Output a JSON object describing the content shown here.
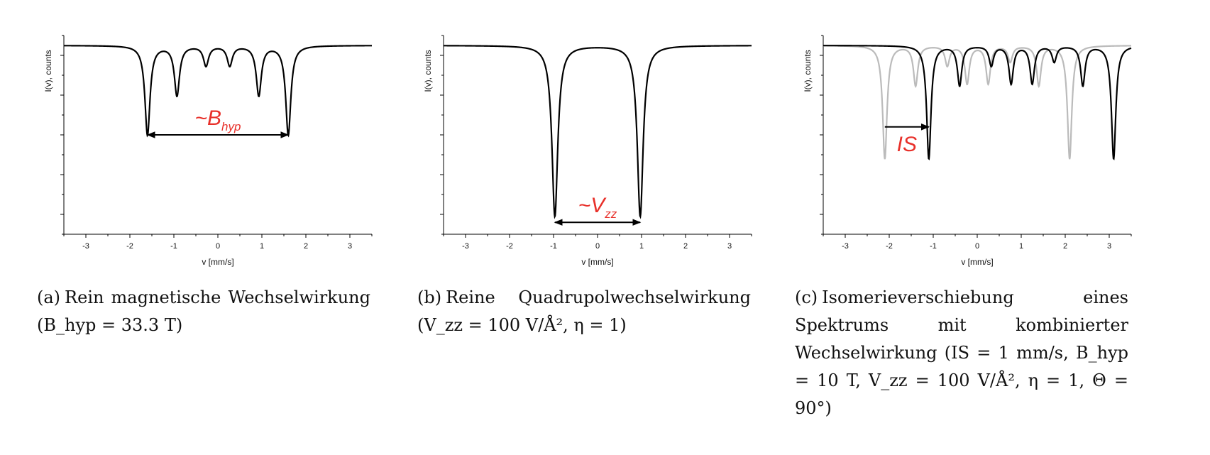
{
  "chart_data": [
    {
      "type": "line",
      "panel": "a",
      "xlabel": "v [mm/s]",
      "ylabel": "I(v), counts",
      "xlim": [
        -3.5,
        3.5
      ],
      "ylim": [
        0,
        1
      ],
      "x_ticks": [
        -3,
        -2,
        -1,
        0,
        1,
        2,
        3
      ],
      "grid": false,
      "series": [
        {
          "color": "#000000",
          "baseline": 0.95,
          "lines": [
            {
              "position": -1.6,
              "depth": 0.45,
              "width": 0.07
            },
            {
              "position": -0.93,
              "depth": 0.25,
              "width": 0.07
            },
            {
              "position": -0.27,
              "depth": 0.1,
              "width": 0.07
            },
            {
              "position": 0.27,
              "depth": 0.1,
              "width": 0.07
            },
            {
              "position": 0.93,
              "depth": 0.25,
              "width": 0.07
            },
            {
              "position": 1.6,
              "depth": 0.45,
              "width": 0.07
            }
          ]
        }
      ],
      "annotation": {
        "text": "~B",
        "sub": "hyp",
        "arrow_from": -1.6,
        "arrow_to": 1.6,
        "arrow_y": 0.5,
        "type": "double"
      }
    },
    {
      "type": "line",
      "panel": "b",
      "xlabel": "v [mm/s]",
      "ylabel": "I(v), counts",
      "xlim": [
        -3.5,
        3.5
      ],
      "ylim": [
        0,
        1
      ],
      "x_ticks": [
        -3,
        -2,
        -1,
        0,
        1,
        2,
        3
      ],
      "grid": false,
      "series": [
        {
          "color": "#000000",
          "baseline": 0.95,
          "lines": [
            {
              "position": -0.97,
              "depth": 0.86,
              "width": 0.08
            },
            {
              "position": 0.97,
              "depth": 0.86,
              "width": 0.08
            }
          ]
        }
      ],
      "annotation": {
        "text": "~V",
        "sub": "zz",
        "arrow_from": -0.97,
        "arrow_to": 0.97,
        "arrow_y": 0.06,
        "type": "double"
      }
    },
    {
      "type": "line",
      "panel": "c",
      "xlabel": "v [mm/s]",
      "ylabel": "I(v), counts",
      "xlim": [
        -3.5,
        3.5
      ],
      "ylim": [
        0,
        1
      ],
      "x_ticks": [
        -3,
        -2,
        -1,
        0,
        1,
        2,
        3
      ],
      "grid": false,
      "series": [
        {
          "color": "#bbbbbb",
          "baseline": 0.95,
          "lines": [
            {
              "position": -2.1,
              "depth": 0.57,
              "width": 0.06
            },
            {
              "position": -1.4,
              "depth": 0.2,
              "width": 0.06
            },
            {
              "position": -0.68,
              "depth": 0.1,
              "width": 0.06
            },
            {
              "position": -0.23,
              "depth": 0.19,
              "width": 0.06
            },
            {
              "position": 0.25,
              "depth": 0.19,
              "width": 0.06
            },
            {
              "position": 0.75,
              "depth": 0.08,
              "width": 0.06
            },
            {
              "position": 1.4,
              "depth": 0.2,
              "width": 0.06
            },
            {
              "position": 2.1,
              "depth": 0.57,
              "width": 0.06
            }
          ]
        },
        {
          "color": "#000000",
          "baseline": 0.95,
          "lines": [
            {
              "position": -1.1,
              "depth": 0.57,
              "width": 0.06
            },
            {
              "position": -0.4,
              "depth": 0.2,
              "width": 0.06
            },
            {
              "position": 0.32,
              "depth": 0.1,
              "width": 0.06
            },
            {
              "position": 0.77,
              "depth": 0.19,
              "width": 0.06
            },
            {
              "position": 1.25,
              "depth": 0.19,
              "width": 0.06
            },
            {
              "position": 1.75,
              "depth": 0.08,
              "width": 0.06
            },
            {
              "position": 2.4,
              "depth": 0.2,
              "width": 0.06
            },
            {
              "position": 3.1,
              "depth": 0.57,
              "width": 0.06
            }
          ]
        }
      ],
      "annotation": {
        "text": "IS",
        "sub": "",
        "arrow_from": -2.1,
        "arrow_to": -1.1,
        "arrow_y": 0.54,
        "type": "single"
      }
    }
  ],
  "captions": {
    "a": {
      "tag": "(a)",
      "text": "Rein magnetische Wechselwirkung (B_hyp = 33.3 T)"
    },
    "b": {
      "tag": "(b)",
      "text": "Reine Quadrupolwechselwirkung (V_zz = 100 V/Å², η = 1)"
    },
    "c": {
      "tag": "(c)",
      "text": "Isomerieverschiebung eines Spektrums mit kombinierter Wechselwirkung (IS = 1 mm/s, B_hyp = 10 T, V_zz = 100 V/Å², η = 1, Θ = 90°)"
    }
  }
}
